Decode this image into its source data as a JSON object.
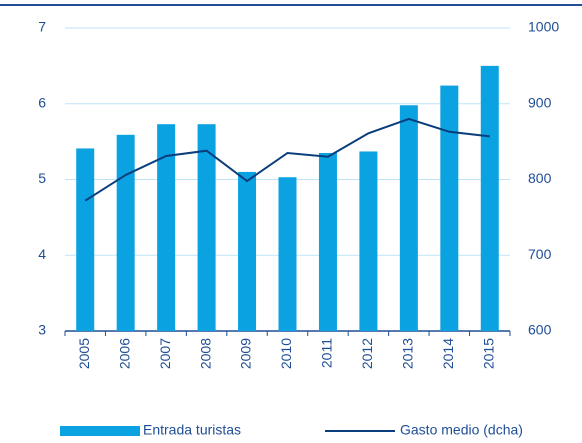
{
  "chart_data": {
    "type": "bar_line",
    "categories": [
      "2005",
      "2006",
      "2007",
      "2008",
      "2009",
      "2010",
      "2011",
      "2012",
      "2013",
      "2014",
      "2015"
    ],
    "series": [
      {
        "name": "Entrada turistas",
        "type": "bar",
        "color": "#0ba2e2",
        "values": [
          5.41,
          5.59,
          5.73,
          5.73,
          5.1,
          5.03,
          5.35,
          5.37,
          5.98,
          6.24,
          6.5
        ]
      },
      {
        "name": "Gasto medio (dcha)",
        "type": "line",
        "axis": "y2",
        "color": "#0a3d7c",
        "values": [
          772,
          806,
          831,
          838,
          798,
          835,
          830,
          861,
          880,
          863,
          857
        ]
      }
    ],
    "ylim": [
      3,
      7
    ],
    "yticks": [
      3,
      4,
      5,
      6,
      7
    ],
    "y2lim": [
      600,
      1000
    ],
    "y2ticks": [
      600,
      700,
      800,
      900,
      1000
    ],
    "grid": true,
    "legend": "bottom"
  }
}
